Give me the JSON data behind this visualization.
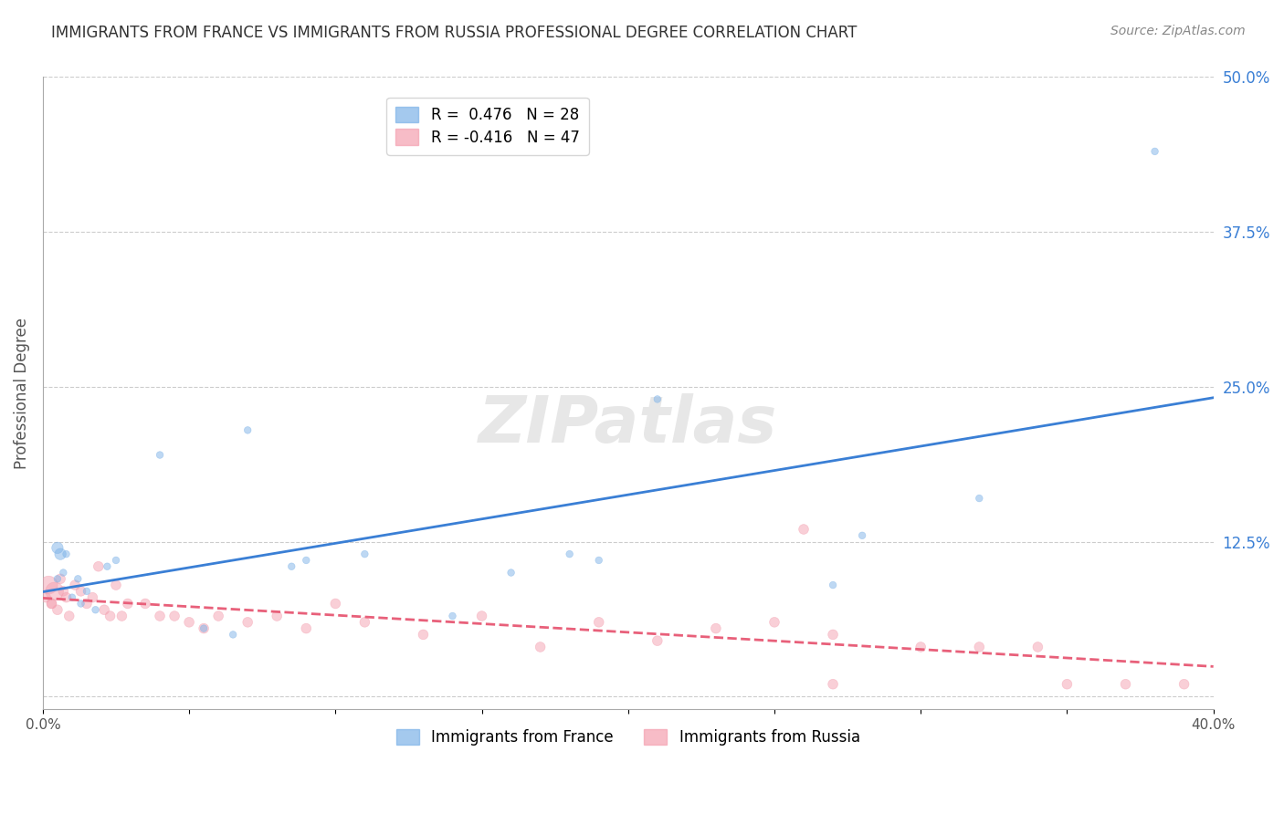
{
  "title": "IMMIGRANTS FROM FRANCE VS IMMIGRANTS FROM RUSSIA PROFESSIONAL DEGREE CORRELATION CHART",
  "source": "Source: ZipAtlas.com",
  "ylabel": "Professional Degree",
  "xlabel": "",
  "watermark": "ZIPatlas",
  "xlim": [
    0.0,
    0.4
  ],
  "ylim": [
    -0.01,
    0.5
  ],
  "xticks": [
    0.0,
    0.05,
    0.1,
    0.15,
    0.2,
    0.25,
    0.3,
    0.35,
    0.4
  ],
  "xtick_labels": [
    "0.0%",
    "",
    "",
    "",
    "",
    "",
    "",
    "",
    "40.0%"
  ],
  "yticks_right": [
    0.0,
    0.125,
    0.25,
    0.375,
    0.5
  ],
  "ytick_right_labels": [
    "",
    "12.5%",
    "25.0%",
    "37.5%",
    "50.0%"
  ],
  "france_R": 0.476,
  "france_N": 28,
  "russia_R": -0.416,
  "russia_N": 47,
  "france_color": "#7eb3e8",
  "russia_color": "#f4a0b0",
  "france_line_color": "#3a7fd5",
  "russia_line_color": "#e8607a",
  "legend_france_label": "R =  0.476   N = 28",
  "legend_russia_label": "R = -0.416   N = 47",
  "legend_france_display": "Immigrants from France",
  "legend_russia_display": "Immigrants from Russia",
  "france_x": [
    0.005,
    0.007,
    0.012,
    0.008,
    0.01,
    0.015,
    0.013,
    0.018,
    0.005,
    0.006,
    0.025,
    0.022,
    0.04,
    0.07,
    0.085,
    0.11,
    0.18,
    0.21,
    0.19,
    0.16,
    0.14,
    0.09,
    0.055,
    0.065,
    0.28,
    0.27,
    0.32,
    0.38
  ],
  "france_y": [
    0.095,
    0.1,
    0.095,
    0.115,
    0.08,
    0.085,
    0.075,
    0.07,
    0.12,
    0.115,
    0.11,
    0.105,
    0.195,
    0.215,
    0.105,
    0.115,
    0.115,
    0.24,
    0.11,
    0.1,
    0.065,
    0.11,
    0.055,
    0.05,
    0.13,
    0.09,
    0.16,
    0.44
  ],
  "france_sizes": [
    30,
    30,
    30,
    30,
    30,
    30,
    30,
    30,
    80,
    80,
    30,
    30,
    30,
    30,
    30,
    30,
    30,
    30,
    30,
    30,
    30,
    30,
    30,
    30,
    30,
    30,
    30,
    30
  ],
  "russia_x": [
    0.002,
    0.004,
    0.006,
    0.008,
    0.003,
    0.005,
    0.007,
    0.009,
    0.001,
    0.003,
    0.011,
    0.013,
    0.015,
    0.017,
    0.019,
    0.021,
    0.023,
    0.025,
    0.027,
    0.029,
    0.035,
    0.04,
    0.045,
    0.05,
    0.055,
    0.06,
    0.07,
    0.08,
    0.09,
    0.1,
    0.11,
    0.13,
    0.15,
    0.17,
    0.19,
    0.21,
    0.23,
    0.25,
    0.27,
    0.3,
    0.32,
    0.34,
    0.27,
    0.35,
    0.37,
    0.39,
    0.26
  ],
  "russia_y": [
    0.09,
    0.085,
    0.095,
    0.08,
    0.075,
    0.07,
    0.085,
    0.065,
    0.08,
    0.075,
    0.09,
    0.085,
    0.075,
    0.08,
    0.105,
    0.07,
    0.065,
    0.09,
    0.065,
    0.075,
    0.075,
    0.065,
    0.065,
    0.06,
    0.055,
    0.065,
    0.06,
    0.065,
    0.055,
    0.075,
    0.06,
    0.05,
    0.065,
    0.04,
    0.06,
    0.045,
    0.055,
    0.06,
    0.05,
    0.04,
    0.04,
    0.04,
    0.01,
    0.01,
    0.01,
    0.01,
    0.135
  ],
  "russia_sizes": [
    200,
    200,
    60,
    60,
    60,
    60,
    60,
    60,
    60,
    60,
    60,
    60,
    60,
    60,
    60,
    60,
    60,
    60,
    60,
    60,
    60,
    60,
    60,
    60,
    60,
    60,
    60,
    60,
    60,
    60,
    60,
    60,
    60,
    60,
    60,
    60,
    60,
    60,
    60,
    60,
    60,
    60,
    60,
    60,
    60,
    60,
    60
  ],
  "background_color": "#ffffff",
  "grid_color": "#cccccc",
  "title_color": "#333333",
  "axis_label_color": "#555555",
  "right_tick_color": "#3a7fd5"
}
